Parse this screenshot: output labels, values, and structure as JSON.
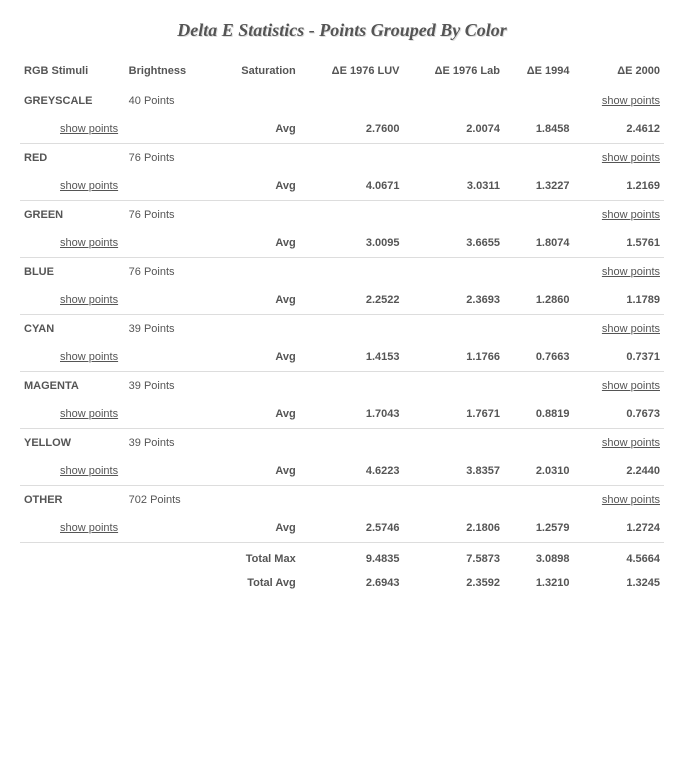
{
  "title": "Delta E Statistics - Points Grouped By Color",
  "columns": {
    "stimuli": "RGB Stimuli",
    "brightness": "Brightness",
    "saturation": "Saturation",
    "de1976luv": "ΔE 1976 LUV",
    "de1976lab": "ΔE 1976 Lab",
    "de1994": "ΔE 1994",
    "de2000": "ΔE 2000"
  },
  "show_points_label": "show points",
  "avg_label": "Avg",
  "groups": [
    {
      "name": "GREYSCALE",
      "points": "40 Points",
      "avg": {
        "luv": "2.7600",
        "lab": "2.0074",
        "d94": "1.8458",
        "d00": "2.4612"
      }
    },
    {
      "name": "RED",
      "points": "76 Points",
      "avg": {
        "luv": "4.0671",
        "lab": "3.0311",
        "d94": "1.3227",
        "d00": "1.2169"
      }
    },
    {
      "name": "GREEN",
      "points": "76 Points",
      "avg": {
        "luv": "3.0095",
        "lab": "3.6655",
        "d94": "1.8074",
        "d00": "1.5761"
      }
    },
    {
      "name": "BLUE",
      "points": "76 Points",
      "avg": {
        "luv": "2.2522",
        "lab": "2.3693",
        "d94": "1.2860",
        "d00": "1.1789"
      }
    },
    {
      "name": "CYAN",
      "points": "39 Points",
      "avg": {
        "luv": "1.4153",
        "lab": "1.1766",
        "d94": "0.7663",
        "d00": "0.7371"
      }
    },
    {
      "name": "MAGENTA",
      "points": "39 Points",
      "avg": {
        "luv": "1.7043",
        "lab": "1.7671",
        "d94": "0.8819",
        "d00": "0.7673"
      }
    },
    {
      "name": "YELLOW",
      "points": "39 Points",
      "avg": {
        "luv": "4.6223",
        "lab": "3.8357",
        "d94": "2.0310",
        "d00": "2.2440"
      }
    },
    {
      "name": "OTHER",
      "points": "702 Points",
      "avg": {
        "luv": "2.5746",
        "lab": "2.1806",
        "d94": "1.2579",
        "d00": "1.2724"
      }
    }
  ],
  "totals": {
    "max_label": "Total Max",
    "avg_label": "Total Avg",
    "max": {
      "luv": "9.4835",
      "lab": "7.5873",
      "d94": "3.0898",
      "d00": "4.5664"
    },
    "avg": {
      "luv": "2.6943",
      "lab": "2.3592",
      "d94": "1.3210",
      "d00": "1.3245"
    }
  },
  "style": {
    "background_color": "#ffffff",
    "text_color": "#555555",
    "border_color": "#dddddd",
    "title_font": "Georgia",
    "body_font": "Verdana",
    "title_fontsize_pt": 18,
    "body_fontsize_pt": 11
  }
}
